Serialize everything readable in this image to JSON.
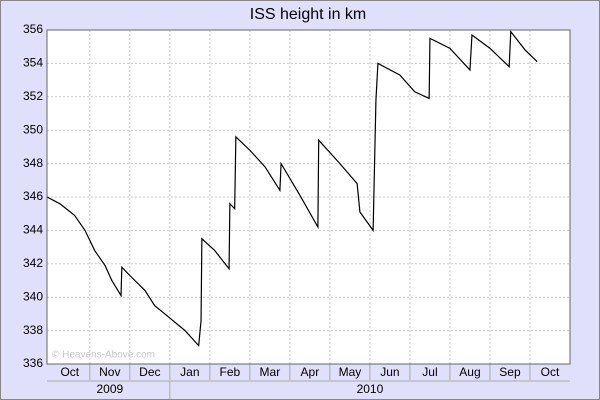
{
  "chart_data": {
    "type": "line",
    "title": "ISS height in km",
    "watermark": "© Heavens-Above.com",
    "x": [
      -0.07,
      0.25,
      0.62,
      0.88,
      1.12,
      1.38,
      1.55,
      1.78,
      1.8,
      2.0,
      2.38,
      2.62,
      3.0,
      3.38,
      3.72,
      3.78,
      3.8,
      4.12,
      4.48,
      4.5,
      4.62,
      4.65,
      5.0,
      5.38,
      5.75,
      5.78,
      6.25,
      6.7,
      6.72,
      7.25,
      7.68,
      7.75,
      8.08,
      8.15,
      8.2,
      8.75,
      9.12,
      9.48,
      9.5,
      10.0,
      10.5,
      10.55,
      11.0,
      11.48,
      11.52,
      11.88,
      12.18
    ],
    "series": [
      {
        "color": "#000000",
        "values": [
          346.0,
          345.6,
          344.9,
          344.0,
          342.8,
          341.9,
          341.0,
          340.1,
          341.8,
          341.3,
          340.4,
          339.5,
          338.75,
          338.0,
          337.1,
          338.6,
          343.5,
          342.8,
          341.7,
          345.6,
          345.3,
          349.6,
          348.8,
          347.8,
          346.4,
          348.0,
          346.1,
          344.2,
          349.4,
          348.0,
          346.8,
          345.1,
          344.0,
          351.8,
          354.0,
          353.3,
          352.3,
          351.9,
          355.5,
          354.9,
          353.6,
          355.7,
          354.9,
          353.8,
          355.9,
          354.8,
          354.1
        ]
      }
    ],
    "xlim": [
      -0.07,
      13
    ],
    "xticks": [
      {
        "value": 0.5,
        "label": "Oct"
      },
      {
        "value": 1.5,
        "label": "Nov"
      },
      {
        "value": 2.5,
        "label": "Dec"
      },
      {
        "value": 3.5,
        "label": "Jan"
      },
      {
        "value": 4.5,
        "label": "Feb"
      },
      {
        "value": 5.5,
        "label": "Mar"
      },
      {
        "value": 6.5,
        "label": "Apr"
      },
      {
        "value": 7.5,
        "label": "May"
      },
      {
        "value": 8.5,
        "label": "Jun"
      },
      {
        "value": 9.5,
        "label": "Jul"
      },
      {
        "value": 10.5,
        "label": "Aug"
      },
      {
        "value": 11.5,
        "label": "Sep"
      },
      {
        "value": 12.5,
        "label": "Oct"
      }
    ],
    "xgrid": [
      1,
      2,
      3,
      4,
      5,
      6,
      7,
      8,
      9,
      10,
      11,
      12
    ],
    "years": [
      {
        "value": 1.5,
        "label": "2009"
      },
      {
        "value": 8,
        "label": "2010"
      }
    ],
    "ylim": [
      336,
      356
    ],
    "yticks": [
      336,
      338,
      340,
      342,
      344,
      346,
      348,
      350,
      352,
      354,
      356
    ],
    "grid": true
  }
}
